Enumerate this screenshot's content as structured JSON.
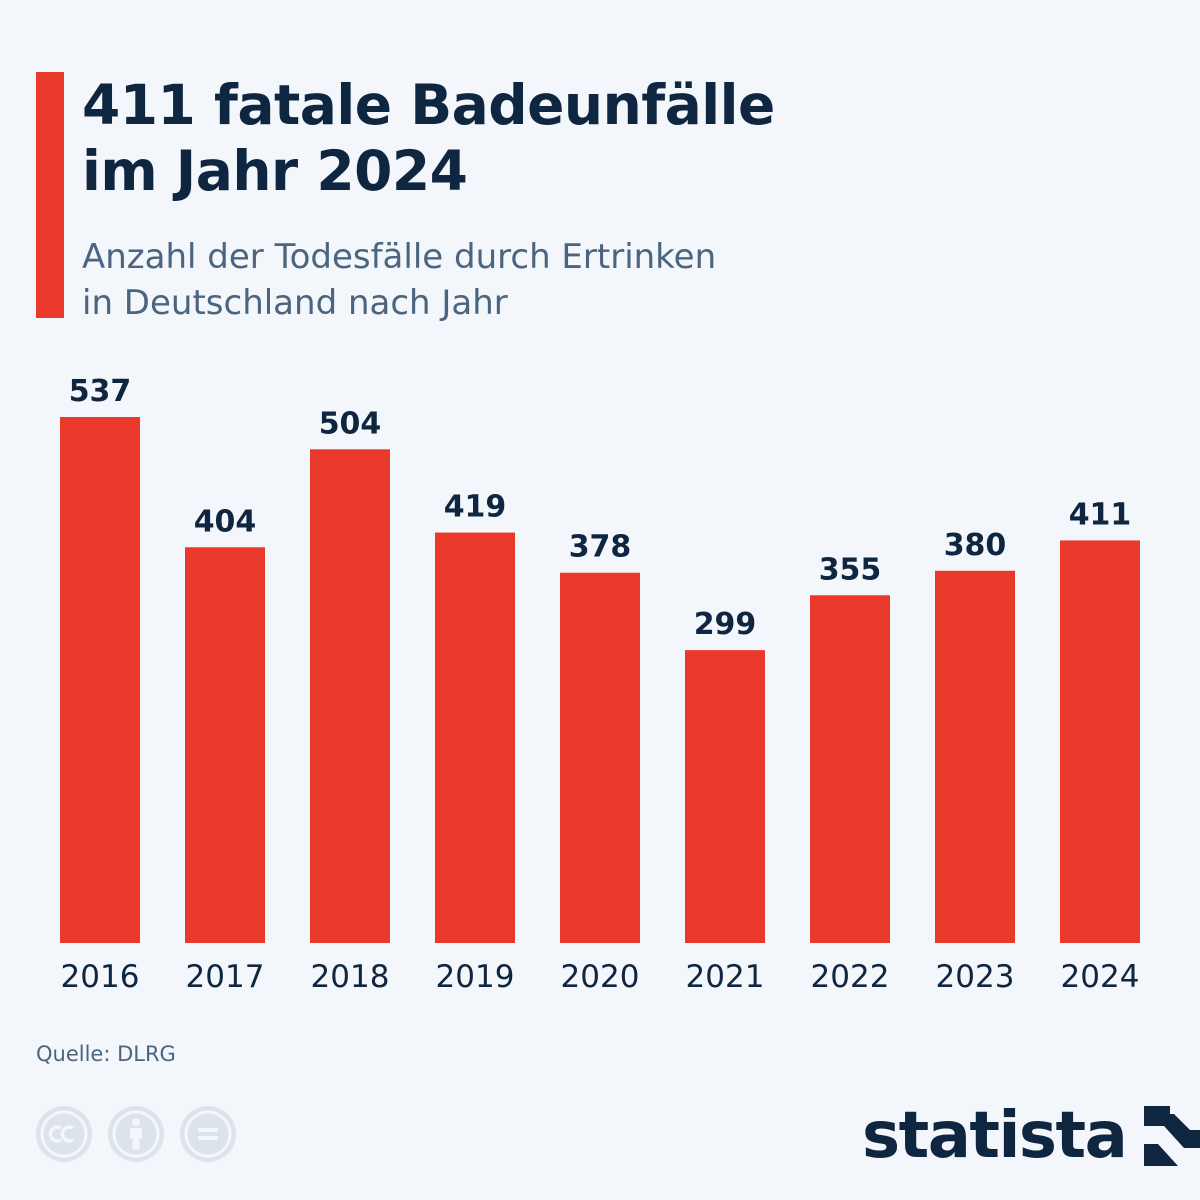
{
  "title": "411 fatale Badeunfälle\nim Jahr 2024",
  "subtitle": "Anzahl der Todesfälle durch Ertrinken\nin Deutschland nach Jahr",
  "source": "Quelle: DLRG",
  "logo_text": "statista",
  "colors": {
    "bar": "#e8392b",
    "title": "#0f2640",
    "subtitle": "#4b6580",
    "background": "#f3f6fa"
  },
  "license_icons": [
    "cc-icon",
    "attribution-icon",
    "no-derivatives-icon"
  ],
  "chart_data": {
    "type": "bar",
    "categories": [
      "2016",
      "2017",
      "2018",
      "2019",
      "2020",
      "2021",
      "2022",
      "2023",
      "2024"
    ],
    "values": [
      537,
      404,
      504,
      419,
      378,
      299,
      355,
      380,
      411
    ],
    "title": "411 fatale Badeunfälle im Jahr 2024",
    "subtitle": "Anzahl der Todesfälle durch Ertrinken in Deutschland nach Jahr",
    "xlabel": "",
    "ylabel": "",
    "ylim": [
      0,
      537
    ],
    "grid": false,
    "legend": "none",
    "data_labels": true
  }
}
